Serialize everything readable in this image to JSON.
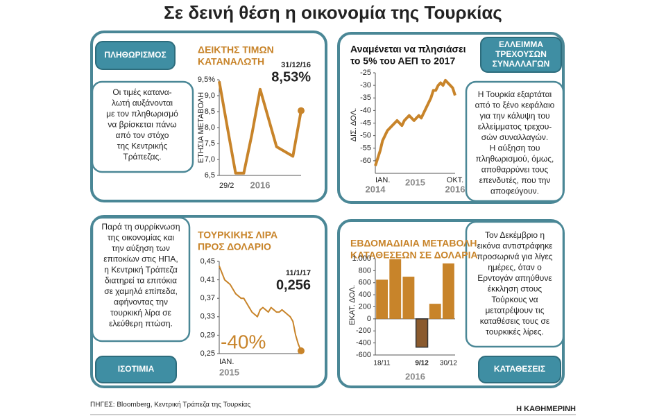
{
  "title": "Σε δεινή θέση η οικονομία της Τουρκίας",
  "source": "ΠΗΓΕΣ: Bloomberg, Κεντρική Τράπεζα της  Τουρκίας",
  "publisher": "Η ΚΑΘΗΜΕΡΙΝΗ",
  "chart_data": [
    {
      "type": "line",
      "label": [
        "ΠΛΗΘΩΡΙΣΜΟΣ"
      ],
      "description": [
        "Οι τιμές κατανα-",
        "λωτή αυξάνονται",
        "με τον πληθωρισμό",
        "να βρίσκεται πάνω",
        "από τον στόχο",
        "της Κεντρικής",
        "Τράπεζας."
      ],
      "title": [
        "ΔΕΙΚΤΗΣ ΤΙΜΩΝ",
        "ΚΑΤΑΝΑΛΩΤΗ"
      ],
      "title_color": "#c8842a",
      "ylabel": "ΕΤΗΣΙΑ ΜΕΤΑΒΟΛΗ",
      "xlabel": "2016",
      "categories": [
        "29/2",
        null,
        null,
        null,
        null,
        null,
        null,
        null,
        null,
        null,
        null
      ],
      "values": [
        9.45,
        8.0,
        6.57,
        6.57,
        7.8,
        9.2,
        8.3,
        7.4,
        7.25,
        7.1,
        8.53
      ],
      "value_labels": [
        null,
        null,
        null,
        null,
        null,
        null,
        null,
        null,
        null,
        null,
        "8,53%"
      ],
      "annotation": "31/12/16",
      "color": "#c8842a",
      "ylim": [
        6.5,
        9.5
      ],
      "yticks": [
        {
          "value": 6.5,
          "label": "6,5"
        },
        {
          "value": 7.0,
          "label": "7,0"
        },
        {
          "value": 7.5,
          "label": "7,5"
        },
        {
          "value": 8.0,
          "label": "8,0"
        },
        {
          "value": 8.5,
          "label": "8,5"
        },
        {
          "value": 9.0,
          "label": "9,0"
        },
        {
          "value": 9.5,
          "label": "9,5%"
        }
      ]
    },
    {
      "type": "line",
      "label": [
        "ΕΛΛΕΙΜΜΑ",
        "ΤΡΕΧΟΥΣΩΝ",
        "ΣΥΝΑΛΛΑΓΩΝ"
      ],
      "description": [
        "Η Τουρκία εξαρτάται",
        "από το ξένο κεφάλαιο",
        "για την κάλυψη του",
        "ελλείμματος τρεχου-",
        "σών συναλλαγών.",
        "Η αύξηση του",
        "πληθωρισμού, όμως,",
        "αποθαρρύνει τους",
        "επενδυτές, που την",
        "αποφεύγουν."
      ],
      "title": [
        "Αναμένεται να πλησιάσει",
        "το 5% του ΑΕΠ το 2017"
      ],
      "title_color": "#111111",
      "ylabel": "ΔΙΣ. ΔΟΛ.",
      "years": [
        "2014",
        "2015",
        "2016"
      ],
      "categories": [
        "ΙΑΝ.",
        null,
        null,
        null,
        null,
        null,
        null,
        null,
        null,
        null,
        null,
        null,
        null,
        null,
        null,
        null,
        null,
        null,
        null,
        null,
        null,
        null,
        null,
        null,
        null,
        null,
        null,
        null,
        null,
        null,
        null,
        null,
        null,
        "ΟΚΤ."
      ],
      "values": [
        -62,
        -59,
        -56,
        -52,
        -50,
        -48,
        -47,
        -46,
        -45,
        -44,
        -45,
        -46,
        -44,
        -43,
        -42,
        -43,
        -44,
        -43,
        -42,
        -43,
        -41,
        -39,
        -37,
        -35,
        -32,
        -32,
        -30,
        -29,
        -30,
        -28,
        -29,
        -30,
        -31,
        -34
      ],
      "color": "#c8842a",
      "ylim": [
        -65,
        -25
      ],
      "yticks": [
        -60,
        -55,
        -50,
        -45,
        -40,
        -35,
        -30,
        -25
      ]
    },
    {
      "type": "line",
      "label": [
        "ΙΣΟΤΙΜΙΑ"
      ],
      "description": [
        "Παρά τη συρρίκνωση",
        "της οικονομίας και",
        "την αύξηση των",
        "επιτοκίων στις ΗΠΑ,",
        "η Κεντρική Τράπεζα",
        "διατηρεί τα επιτόκια",
        "σε χαμηλά επίπεδα,",
        "αφήνοντας την",
        "τουρκική λίρα σε",
        "ελεύθερη πτώση."
      ],
      "title": [
        "ΤΟΥΡΚΙΚΗΣ ΛΙΡΑ",
        "ΠΡΟΣ ΔΟΛΑΡΙΟ"
      ],
      "title_color": "#c8842a",
      "xlabel": "2015",
      "change": "-40%",
      "categories": [
        "ΙΑΝ.",
        null,
        null,
        null,
        null,
        null,
        null,
        null,
        null,
        null,
        null,
        null,
        null,
        null,
        null,
        null,
        null,
        null,
        null,
        null,
        null,
        null,
        null,
        null,
        null,
        null,
        null,
        null,
        null,
        null,
        null
      ],
      "values": [
        0.44,
        0.425,
        0.41,
        0.405,
        0.4,
        0.39,
        0.38,
        0.375,
        0.37,
        0.37,
        0.36,
        0.35,
        0.34,
        0.335,
        0.33,
        0.345,
        0.35,
        0.345,
        0.34,
        0.35,
        0.345,
        0.34,
        0.34,
        0.345,
        0.34,
        0.335,
        0.33,
        0.32,
        0.29,
        0.27,
        0.256
      ],
      "value_labels": [
        null,
        null,
        null,
        null,
        null,
        null,
        null,
        null,
        null,
        null,
        null,
        null,
        null,
        null,
        null,
        null,
        null,
        null,
        null,
        null,
        null,
        null,
        null,
        null,
        null,
        null,
        null,
        null,
        null,
        null,
        "0,256"
      ],
      "annotation": "11/1/17",
      "color": "#c8842a",
      "ylim": [
        0.25,
        0.45
      ],
      "yticks": [
        {
          "value": 0.25,
          "label": "0,25"
        },
        {
          "value": 0.29,
          "label": "0,29"
        },
        {
          "value": 0.33,
          "label": "0,33"
        },
        {
          "value": 0.37,
          "label": "0,37"
        },
        {
          "value": 0.41,
          "label": "0,41"
        },
        {
          "value": 0.45,
          "label": "0,45"
        }
      ]
    },
    {
      "type": "bar",
      "label": [
        "ΚΑΤΑΘΕΣΕΙΣ"
      ],
      "description": [
        "Τον Δεκέμβριο η",
        "εικόνα αντιστράφηκε",
        "προσωρινά για λίγες",
        "ημέρες, όταν ο",
        "Ερντογάν απηύθυνε",
        "έκκληση στους",
        "Τούρκους να",
        "μετατρέψουν τις",
        "καταθέσεις τους σε",
        "τουρκικές λίρες."
      ],
      "title": [
        "ΕΒΔΟΜΑΔΙΑΙΑ ΜΕΤΑΒΟΛΗ",
        "ΚΑΤΑΘΕΣΕΩΝ ΣΕ ΔΟΛΑΡΙΑ"
      ],
      "title_color": "#c8842a",
      "ylabel": "ΕΚΑΤ. ΔΟΛ.",
      "xlabel": "2016",
      "categories": [
        "18/11",
        null,
        null,
        "9/12",
        null,
        "30/12"
      ],
      "values": [
        650,
        990,
        700,
        -470,
        250,
        920
      ],
      "color": "#c8842a",
      "negative_color": "#8a5a2e",
      "ylim": [
        -600,
        1000
      ],
      "yticks": [
        -600,
        -400,
        -200,
        0,
        200,
        400,
        600,
        800,
        {
          "value": 1000,
          "label": "1.000"
        }
      ]
    }
  ]
}
